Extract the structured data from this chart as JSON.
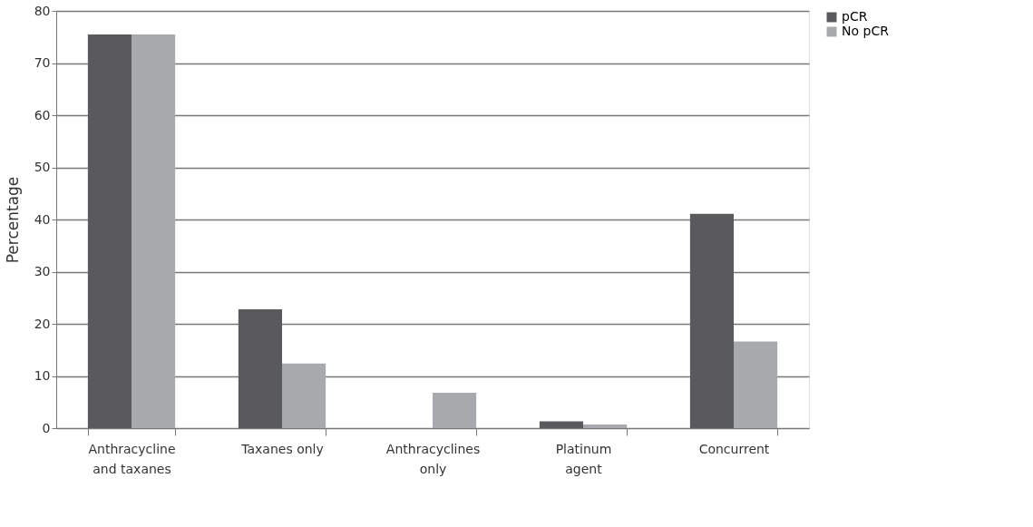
{
  "chart_data": {
    "type": "bar",
    "ylabel": "Percentage",
    "categories": [
      "Anthracycline\nand taxanes",
      "Taxanes only",
      "Anthracyclines\nonly",
      "Platinum\nagent",
      "Concurrent"
    ],
    "series": [
      {
        "name": "pCR",
        "color": "#5a5a5c",
        "values": [
          75.5,
          22.8,
          0,
          1.3,
          41.1
        ]
      },
      {
        "name": "No pCR",
        "color": "#a8a9ad",
        "values": [
          75.5,
          12.4,
          6.8,
          0.7,
          16.6
        ]
      }
    ],
    "ylim": [
      0,
      80
    ],
    "yticks": [
      0,
      10,
      20,
      30,
      40,
      50,
      60,
      70,
      80
    ],
    "grid": "y",
    "legend": "top right"
  }
}
